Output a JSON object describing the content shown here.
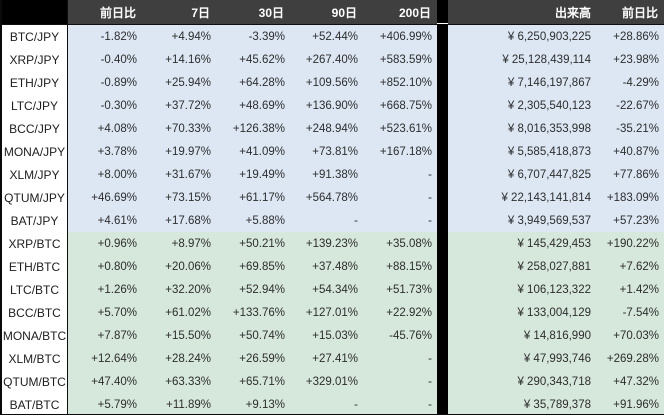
{
  "table": {
    "header": {
      "corner": "",
      "change_1d": "前日比",
      "d7": "7日",
      "d30": "30日",
      "d90": "90日",
      "d200": "200日",
      "volume": "出来高",
      "volume_change_1d": "前日比"
    }
  },
  "colors": {
    "header_bg": "#3f3f3f",
    "header_text": "#ffffff",
    "corner_and_separator": "#000000",
    "jpy_row_bg": "#dce7f3",
    "btc_row_bg": "#d6e7dc",
    "pair_cell_bg": "#ffffff",
    "grid_line": "#0f0f0f",
    "value_text": "#2d2d2d"
  },
  "chart_data": {
    "type": "table",
    "title": "Cryptocurrency pair performance and volume table",
    "columns": [
      "",
      "前日比",
      "7日",
      "30日",
      "90日",
      "200日",
      "出来高",
      "前日比"
    ],
    "rows": [
      [
        "BTC/JPY",
        "-1.82%",
        "+4.94%",
        "-3.39%",
        "+52.44%",
        "+406.99%",
        "¥ 6,250,903,225",
        "+28.86%"
      ],
      [
        "XRP/JPY",
        "-0.40%",
        "+14.16%",
        "+45.62%",
        "+267.40%",
        "+583.59%",
        "¥ 25,128,439,114",
        "+23.98%"
      ],
      [
        "ETH/JPY",
        "-0.89%",
        "+25.94%",
        "+64.28%",
        "+109.56%",
        "+852.10%",
        "¥ 7,146,197,867",
        "-4.29%"
      ],
      [
        "LTC/JPY",
        "-0.30%",
        "+37.72%",
        "+48.69%",
        "+136.90%",
        "+668.75%",
        "¥ 2,305,540,123",
        "-22.67%"
      ],
      [
        "BCC/JPY",
        "+4.08%",
        "+70.33%",
        "+126.38%",
        "+248.94%",
        "+523.61%",
        "¥ 8,016,353,998",
        "-35.21%"
      ],
      [
        "MONA/JPY",
        "+3.78%",
        "+19.97%",
        "+41.09%",
        "+73.81%",
        "+167.18%",
        "¥ 5,585,418,873",
        "+40.87%"
      ],
      [
        "XLM/JPY",
        "+8.00%",
        "+31.67%",
        "+19.49%",
        "+91.38%",
        "-",
        "¥ 6,707,447,825",
        "+77.86%"
      ],
      [
        "QTUM/JPY",
        "+46.69%",
        "+73.15%",
        "+61.17%",
        "+564.78%",
        "-",
        "¥ 22,143,141,814",
        "+183.09%"
      ],
      [
        "BAT/JPY",
        "+4.61%",
        "+17.68%",
        "+5.88%",
        "-",
        "-",
        "¥ 3,949,569,537",
        "+57.23%"
      ],
      [
        "XRP/BTC",
        "+0.96%",
        "+8.97%",
        "+50.21%",
        "+139.23%",
        "+35.08%",
        "¥ 145,429,453",
        "+190.22%"
      ],
      [
        "ETH/BTC",
        "+0.80%",
        "+20.06%",
        "+69.85%",
        "+37.48%",
        "+88.15%",
        "¥ 258,027,881",
        "+7.62%"
      ],
      [
        "LTC/BTC",
        "+1.26%",
        "+32.20%",
        "+52.94%",
        "+54.34%",
        "+51.73%",
        "¥ 106,123,322",
        "+1.42%"
      ],
      [
        "BCC/BTC",
        "+5.70%",
        "+61.02%",
        "+133.76%",
        "+127.01%",
        "+22.92%",
        "¥ 133,004,129",
        "-7.54%"
      ],
      [
        "MONA/BTC",
        "+7.87%",
        "+15.50%",
        "+50.74%",
        "+15.03%",
        "-45.76%",
        "¥ 14,816,990",
        "+70.03%"
      ],
      [
        "XLM/BTC",
        "+12.64%",
        "+28.24%",
        "+26.59%",
        "+27.41%",
        "-",
        "¥ 47,993,746",
        "+269.28%"
      ],
      [
        "QTUM/BTC",
        "+47.40%",
        "+63.33%",
        "+65.71%",
        "+329.01%",
        "-",
        "¥ 290,343,718",
        "+47.32%"
      ],
      [
        "BAT/BTC",
        "+5.79%",
        "+11.89%",
        "+9.13%",
        "-",
        "-",
        "¥ 35,789,378",
        "+91.96%"
      ]
    ]
  }
}
